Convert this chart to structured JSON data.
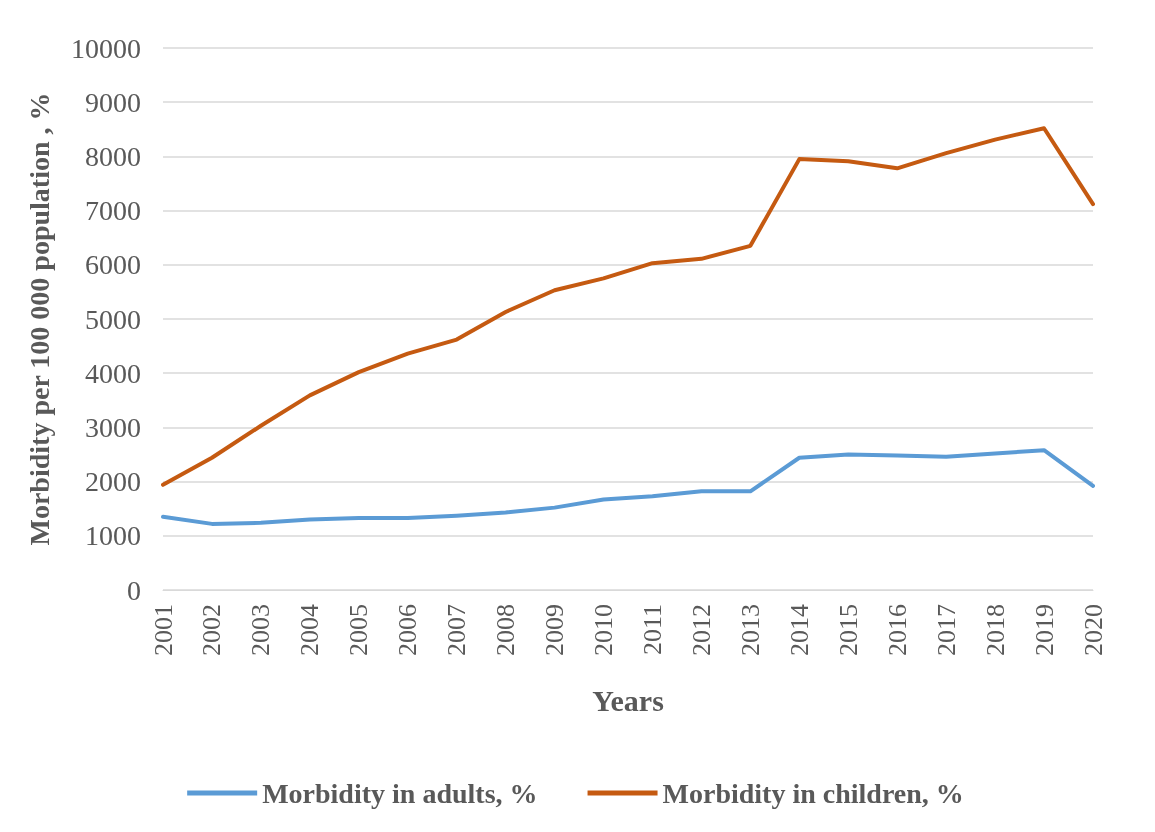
{
  "chart_data": {
    "type": "line",
    "xlabel": "Years",
    "ylabel": "Morbidity per 100 000 population , %",
    "categories": [
      "2001",
      "2002",
      "2003",
      "2004",
      "2005",
      "2006",
      "2007",
      "2008",
      "2009",
      "2010",
      "2011",
      "2012",
      "2013",
      "2014",
      "2015",
      "2016",
      "2017",
      "2018",
      "2019",
      "2020"
    ],
    "series": [
      {
        "name": "Morbidity in adults, %",
        "color": "#5b9bd5",
        "values": [
          1350,
          1220,
          1240,
          1300,
          1330,
          1330,
          1370,
          1430,
          1520,
          1670,
          1730,
          1820,
          1820,
          2440,
          2500,
          2480,
          2460,
          2520,
          2580,
          1920
        ]
      },
      {
        "name": "Morbidity in children, %",
        "color": "#c55a11",
        "values": [
          1940,
          2440,
          3030,
          3590,
          4020,
          4360,
          4620,
          5130,
          5530,
          5750,
          6030,
          6110,
          6350,
          7950,
          7910,
          7780,
          8060,
          8310,
          8520,
          7120
        ]
      }
    ],
    "ylim": [
      0,
      10000
    ],
    "yticks": [
      0,
      1000,
      2000,
      3000,
      4000,
      5000,
      6000,
      7000,
      8000,
      9000,
      10000
    ],
    "grid": "y",
    "legend": "bottom",
    "marker": "none",
    "line_style": "solid"
  }
}
